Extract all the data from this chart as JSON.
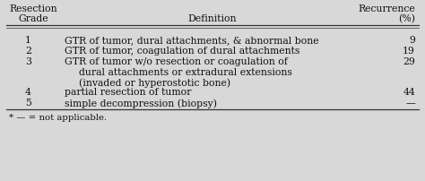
{
  "header_line1_left": "Resection",
  "header_line1_right": "Recurrence",
  "header_line2_left": "Grade",
  "header_line2_center": "Definition",
  "header_line2_right": "(%)",
  "rows": [
    {
      "grade": "1",
      "def_lines": [
        "GTR of tumor, dural attachments, & abnormal bone"
      ],
      "recurrence": "9"
    },
    {
      "grade": "2",
      "def_lines": [
        "GTR of tumor, coagulation of dural attachments"
      ],
      "recurrence": "19"
    },
    {
      "grade": "3",
      "def_lines": [
        "GTR of tumor w/o resection or coagulation of",
        "dural attachments or extradural extensions",
        "(invaded or hyperostotic bone)"
      ],
      "recurrence": "29"
    },
    {
      "grade": "4",
      "def_lines": [
        "partial resection of tumor"
      ],
      "recurrence": "44"
    },
    {
      "grade": "5",
      "def_lines": [
        "simple decompression (biopsy)"
      ],
      "recurrence": "—"
    }
  ],
  "footnote": "* — = not applicable.",
  "bg_color": "#d8d8d8",
  "text_color": "#111111",
  "font_size": 7.8,
  "line_color": "#333333"
}
